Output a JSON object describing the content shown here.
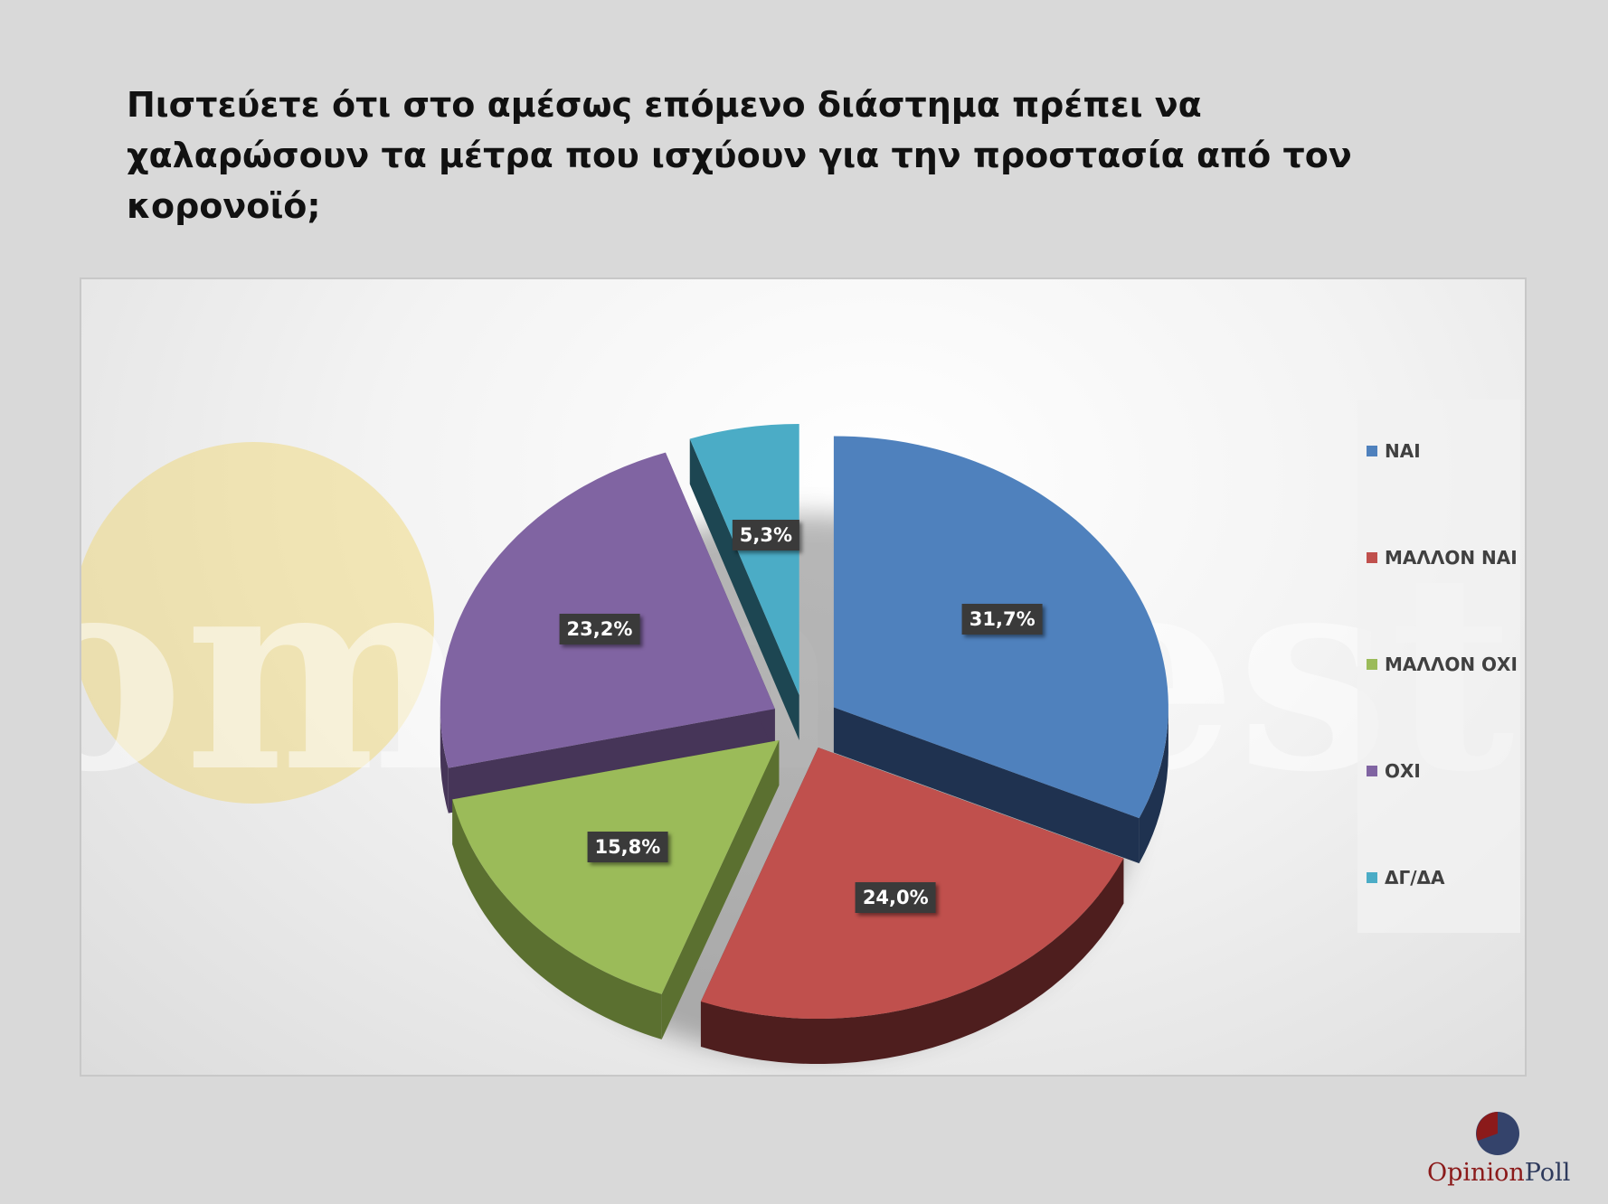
{
  "title": "Πιστεύετε ότι στο αμέσως επόμενο διάστημα πρέπει να χαλαρώσουν τα μέτρα που ισχύουν για την προστασία από τον κορονοϊό;",
  "watermark_text": "tomanifesto",
  "brand": {
    "part1": "Opinion",
    "part2": "Poll"
  },
  "chart_data": {
    "type": "pie",
    "style": "3d-exploded",
    "legend_position": "right",
    "slices": [
      {
        "label": "ΝΑΙ",
        "value": 31.7,
        "display": "31,7%",
        "color": "#4f81bd",
        "side_color": "#1f3250"
      },
      {
        "label": "ΜΑΛΛΟΝ ΝΑΙ",
        "value": 24.0,
        "display": "24,0%",
        "color": "#c0504d",
        "side_color": "#4e1e1e"
      },
      {
        "label": "ΜΑΛΛΟΝ ΟΧΙ",
        "value": 15.8,
        "display": "15,8%",
        "color": "#9bbb59",
        "side_color": "#5b7030"
      },
      {
        "label": "ΟΧΙ",
        "value": 23.2,
        "display": "23,2%",
        "color": "#8064a2",
        "side_color": "#463558"
      },
      {
        "label": "ΔΓ/ΔΑ",
        "value": 5.3,
        "display": "5,3%",
        "color": "#4bacc6",
        "side_color": "#1d4652"
      }
    ]
  }
}
